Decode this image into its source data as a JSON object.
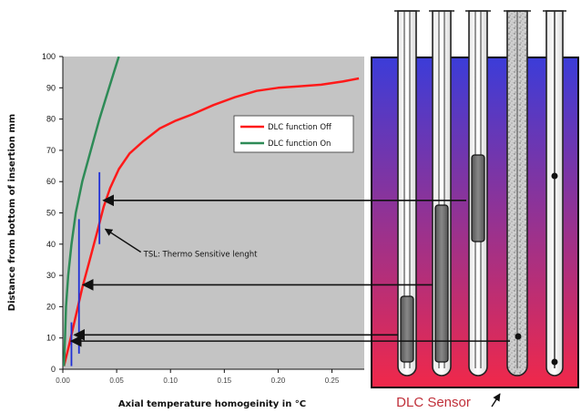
{
  "chart_data": {
    "type": "line",
    "xlabel": "Axial temperature homogeinity in °C",
    "ylabel": "Distance from bottom of insertion mm",
    "xlim": [
      0,
      0.28
    ],
    "ylim": [
      0,
      100
    ],
    "x_ticks": [
      "0.00",
      "0.05",
      "0.10",
      "0.15",
      "0.20",
      "0.25"
    ],
    "y_ticks": [
      "0",
      "10",
      "20",
      "30",
      "40",
      "50",
      "60",
      "70",
      "80",
      "90",
      "100"
    ],
    "grid": false,
    "legend_position": "top-right",
    "series": [
      {
        "name": "DLC function Off",
        "color": "#ff1a1a",
        "x": [
          0.001,
          0.006,
          0.012,
          0.018,
          0.025,
          0.032,
          0.038,
          0.044,
          0.052,
          0.062,
          0.075,
          0.09,
          0.105,
          0.12,
          0.14,
          0.16,
          0.18,
          0.2,
          0.22,
          0.24,
          0.26,
          0.275
        ],
        "y": [
          1,
          8,
          17,
          26,
          35,
          44,
          52,
          58,
          64,
          69,
          73,
          77,
          79.5,
          81.5,
          84.5,
          87,
          89,
          90,
          90.5,
          91,
          92,
          93
        ]
      },
      {
        "name": "DLC function On",
        "color": "#2e8b57",
        "x": [
          0.001,
          0.002,
          0.003,
          0.005,
          0.008,
          0.012,
          0.018,
          0.026,
          0.034,
          0.042,
          0.052
        ],
        "y": [
          1,
          10,
          20,
          30,
          40,
          50,
          60,
          70,
          80,
          89,
          100
        ]
      }
    ],
    "markers": [
      {
        "x": 0.008,
        "y_from": 1,
        "y_to": 15,
        "color": "#1e2fd6"
      },
      {
        "x": 0.015,
        "y_from": 5,
        "y_to": 48,
        "color": "#1e2fd6"
      },
      {
        "x": 0.034,
        "y_from": 40,
        "y_to": 63,
        "color": "#1e2fd6"
      }
    ],
    "annotations": [
      {
        "text": "TSL: Thermo Sensitive lenght",
        "x": 0.075,
        "y": 36,
        "point_to": {
          "x": 0.036,
          "y": 46
        }
      }
    ],
    "reference_arrows": [
      {
        "y": 54,
        "from_tube": 2
      },
      {
        "y": 27,
        "from_tube": 1
      },
      {
        "y": 11,
        "from_tube": 0
      },
      {
        "y": 9,
        "from_tube": 3
      }
    ]
  },
  "illustration": {
    "caption": "DLC Sensor",
    "caption_color": "#c0303a",
    "bath_top_color": "#3c3cd8",
    "bath_bottom_color": "#f0284a",
    "tube_count": 5
  }
}
